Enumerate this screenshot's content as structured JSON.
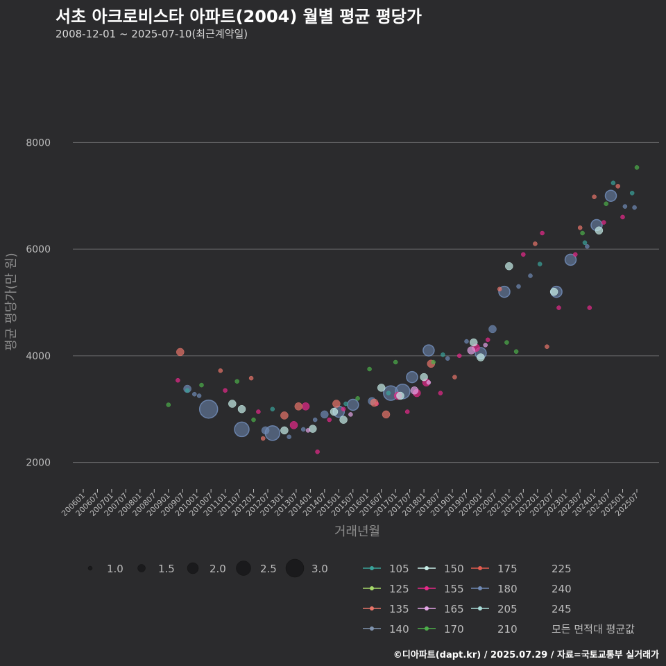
{
  "header": {
    "title": "서초 아크로비스타 아파트(2004) 월별 평균 평당가",
    "subtitle": "2008-12-01 ~ 2025-07-10(최근계약일)"
  },
  "footer": {
    "credit": "©디아파트(dapt.kr) / 2025.07.29 / 자료=국토교통부 실거래가"
  },
  "chart_data": {
    "type": "scatter",
    "xlabel": "거래년월",
    "ylabel": "평균 평당가(만 원)",
    "ylim": [
      1500,
      9500
    ],
    "yticks": [
      2000,
      4000,
      6000,
      8000
    ],
    "x_tick_labels": [
      "200601",
      "200607",
      "200701",
      "200707",
      "200801",
      "200807",
      "200901",
      "200907",
      "201001",
      "201007",
      "201101",
      "201107",
      "201201",
      "201207",
      "201301",
      "201307",
      "201401",
      "201407",
      "201501",
      "201507",
      "201601",
      "201607",
      "201701",
      "201707",
      "201801",
      "201807",
      "201901",
      "201907",
      "202001",
      "202007",
      "202101",
      "202107",
      "202201",
      "202207",
      "202301",
      "202307",
      "202401",
      "202407",
      "202501",
      "202507"
    ],
    "grid": true,
    "size_legend": {
      "values": [
        "1.0",
        "1.5",
        "2.0",
        "2.5",
        "3.0"
      ]
    },
    "area_legend": {
      "entries": [
        {
          "name": "105",
          "color": "#3aa39a"
        },
        {
          "name": "125",
          "color": "#a6d96a"
        },
        {
          "name": "135",
          "color": "#e8756a"
        },
        {
          "name": "140",
          "color": "#7f93ad"
        },
        {
          "name": "150",
          "color": "#c7eee8"
        },
        {
          "name": "155",
          "color": "#e7298a"
        },
        {
          "name": "165",
          "color": "#e3a5e5"
        },
        {
          "name": "170",
          "color": "#4daf4a"
        },
        {
          "name": "175",
          "color": "#e25c4f"
        },
        {
          "name": "180",
          "color": "#6f8ab5"
        },
        {
          "name": "205",
          "color": "#a9dcd8"
        },
        {
          "name": "210",
          "color": ""
        },
        {
          "name": "225",
          "color": ""
        },
        {
          "name": "240",
          "color": ""
        },
        {
          "name": "245",
          "color": ""
        },
        {
          "name": "모든 면적대 평균값",
          "color": ""
        }
      ]
    },
    "series": [
      {
        "name": "180",
        "color": "#6f8ab5",
        "points": [
          [
            "2009-09",
            3380,
            1.5
          ],
          [
            "2009-12",
            3280,
            1.0
          ],
          [
            "2010-02",
            3250,
            1.0
          ],
          [
            "2010-06",
            3000,
            3.0
          ],
          [
            "2011-08",
            2620,
            2.5
          ],
          [
            "2012-06",
            2600,
            1.5
          ],
          [
            "2012-09",
            2550,
            2.5
          ],
          [
            "2013-04",
            2480,
            1.0
          ],
          [
            "2013-10",
            2620,
            1.0
          ],
          [
            "2014-03",
            2800,
            1.0
          ],
          [
            "2014-07",
            2900,
            1.5
          ],
          [
            "2015-01",
            2950,
            2.0
          ],
          [
            "2015-07",
            3080,
            2.0
          ],
          [
            "2016-03",
            3150,
            1.5
          ],
          [
            "2016-11",
            3300,
            2.5
          ],
          [
            "2017-04",
            3330,
            2.5
          ],
          [
            "2017-08",
            3600,
            2.0
          ],
          [
            "2018-03",
            4100,
            2.0
          ],
          [
            "2018-11",
            3950,
            1.0
          ],
          [
            "2019-07",
            4270,
            1.0
          ],
          [
            "2020-01",
            4050,
            2.0
          ],
          [
            "2020-06",
            4500,
            1.5
          ],
          [
            "2020-11",
            5200,
            2.0
          ],
          [
            "2021-05",
            5300,
            1.0
          ],
          [
            "2021-10",
            5500,
            1.0
          ],
          [
            "2022-09",
            5200,
            2.0
          ],
          [
            "2023-03",
            5800,
            2.0
          ],
          [
            "2023-10",
            6050,
            1.0
          ],
          [
            "2024-02",
            6450,
            2.0
          ],
          [
            "2024-08",
            7000,
            2.0
          ],
          [
            "2025-02",
            6800,
            1.0
          ],
          [
            "2025-06",
            6780,
            1.0
          ]
        ]
      },
      {
        "name": "155",
        "color": "#e7298a",
        "points": [
          [
            "2009-05",
            3540,
            1.0
          ],
          [
            "2011-01",
            3350,
            1.0
          ],
          [
            "2012-03",
            2950,
            1.0
          ],
          [
            "2013-06",
            2700,
            1.5
          ],
          [
            "2013-11",
            3050,
            1.5
          ],
          [
            "2014-04",
            2200,
            1.0
          ],
          [
            "2014-09",
            2800,
            1.0
          ],
          [
            "2015-03",
            3000,
            1.0
          ],
          [
            "2016-05",
            3100,
            1.0
          ],
          [
            "2017-02",
            3250,
            1.5
          ],
          [
            "2017-06",
            2950,
            1.0
          ],
          [
            "2017-10",
            3300,
            1.5
          ],
          [
            "2018-02",
            3500,
            1.5
          ],
          [
            "2018-08",
            3300,
            1.0
          ],
          [
            "2019-04",
            4000,
            1.0
          ],
          [
            "2019-11",
            4150,
            1.5
          ],
          [
            "2020-04",
            4300,
            1.0
          ],
          [
            "2021-07",
            5900,
            1.0
          ],
          [
            "2022-03",
            6300,
            1.0
          ],
          [
            "2022-10",
            4900,
            1.0
          ],
          [
            "2023-05",
            5900,
            1.0
          ],
          [
            "2023-11",
            4900,
            1.0
          ],
          [
            "2024-05",
            6500,
            1.0
          ],
          [
            "2025-01",
            6600,
            1.0
          ]
        ]
      },
      {
        "name": "135",
        "color": "#e8756a",
        "points": [
          [
            "2009-06",
            4070,
            1.5
          ],
          [
            "2010-11",
            3720,
            1.0
          ],
          [
            "2011-12",
            3580,
            1.0
          ],
          [
            "2012-05",
            2450,
            1.0
          ],
          [
            "2013-02",
            2880,
            1.5
          ],
          [
            "2013-08",
            3050,
            1.5
          ],
          [
            "2014-12",
            3100,
            1.5
          ],
          [
            "2016-04",
            3120,
            1.5
          ],
          [
            "2016-09",
            2900,
            1.5
          ],
          [
            "2018-04",
            3850,
            1.5
          ],
          [
            "2019-02",
            3600,
            1.0
          ],
          [
            "2020-09",
            5250,
            1.0
          ],
          [
            "2021-12",
            6100,
            1.0
          ],
          [
            "2022-05",
            4170,
            1.0
          ],
          [
            "2023-07",
            6400,
            1.0
          ],
          [
            "2024-01",
            6980,
            1.0
          ],
          [
            "2024-11",
            7180,
            1.0
          ]
        ]
      },
      {
        "name": "150",
        "color": "#c7eee8",
        "points": [
          [
            "2011-04",
            3100,
            1.5
          ],
          [
            "2011-08",
            3000,
            1.5
          ],
          [
            "2013-02",
            2600,
            1.5
          ],
          [
            "2014-02",
            2630,
            1.5
          ],
          [
            "2014-11",
            2950,
            1.5
          ],
          [
            "2015-03",
            2800,
            1.5
          ],
          [
            "2016-07",
            3400,
            1.5
          ],
          [
            "2017-03",
            3250,
            1.5
          ],
          [
            "2018-01",
            3600,
            1.5
          ],
          [
            "2019-10",
            4250,
            1.5
          ],
          [
            "2020-01",
            3970,
            1.5
          ],
          [
            "2021-01",
            5680,
            1.5
          ],
          [
            "2022-08",
            5200,
            1.5
          ],
          [
            "2024-03",
            6350,
            1.5
          ]
        ]
      },
      {
        "name": "165",
        "color": "#e3a5e5",
        "points": [
          [
            "2013-12",
            2600,
            1.0
          ],
          [
            "2015-06",
            2900,
            1.0
          ],
          [
            "2017-09",
            3350,
            1.5
          ],
          [
            "2018-03",
            3500,
            1.0
          ],
          [
            "2019-09",
            4100,
            1.5
          ],
          [
            "2020-03",
            4200,
            1.0
          ]
        ]
      },
      {
        "name": "170",
        "color": "#4daf4a",
        "points": [
          [
            "2009-01",
            3080,
            1.0
          ],
          [
            "2010-03",
            3450,
            1.0
          ],
          [
            "2011-06",
            3520,
            1.0
          ],
          [
            "2012-01",
            2800,
            1.0
          ],
          [
            "2015-09",
            3200,
            1.0
          ],
          [
            "2016-02",
            3750,
            1.0
          ],
          [
            "2017-01",
            3880,
            1.0
          ],
          [
            "2018-05",
            3880,
            1.0
          ],
          [
            "2020-12",
            4250,
            1.0
          ],
          [
            "2021-04",
            4080,
            1.0
          ],
          [
            "2023-08",
            6300,
            1.0
          ],
          [
            "2024-06",
            6850,
            1.0
          ],
          [
            "2025-07",
            7530,
            1.0
          ]
        ]
      },
      {
        "name": "105",
        "color": "#3aa39a",
        "points": [
          [
            "2009-09",
            3350,
            1.0
          ],
          [
            "2012-09",
            3000,
            1.0
          ],
          [
            "2015-04",
            3100,
            1.0
          ],
          [
            "2016-10",
            3300,
            1.0
          ],
          [
            "2018-09",
            4020,
            1.0
          ],
          [
            "2022-02",
            5720,
            1.0
          ],
          [
            "2023-09",
            6120,
            1.0
          ],
          [
            "2024-09",
            7240,
            1.0
          ],
          [
            "2025-05",
            7050,
            1.0
          ]
        ]
      }
    ]
  }
}
